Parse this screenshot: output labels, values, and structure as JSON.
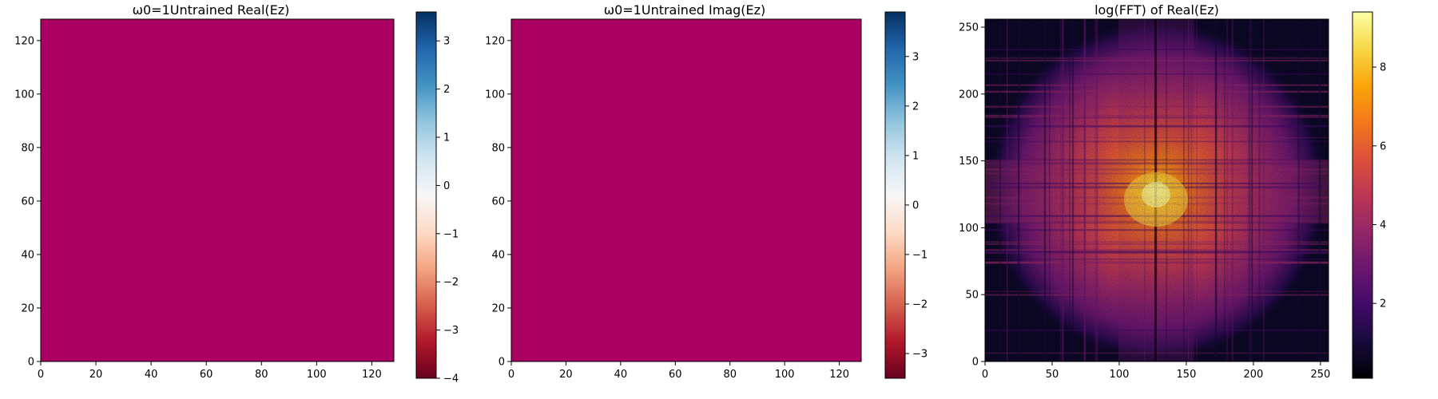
{
  "chart_data": [
    {
      "type": "heatmap",
      "title": "ω0=1Untrained Real(Ez)",
      "colormap": "RdBu",
      "xlim": [
        0,
        128
      ],
      "ylim": [
        0,
        128
      ],
      "xticks": [
        0,
        20,
        40,
        60,
        80,
        100,
        120
      ],
      "yticks": [
        0,
        20,
        40,
        60,
        80,
        100,
        120
      ],
      "colorbar": {
        "range": [
          -4,
          3.6
        ],
        "ticks": [
          3,
          2,
          1,
          0,
          -1,
          -2,
          -3,
          -4
        ],
        "tick_labels": [
          "3",
          "2",
          "1",
          "0",
          "−1",
          "−2",
          "−3",
          "−4"
        ]
      }
    },
    {
      "type": "heatmap",
      "title": "ω0=1Untrained Imag(Ez)",
      "colormap": "RdBu",
      "xlim": [
        0,
        128
      ],
      "ylim": [
        0,
        128
      ],
      "xticks": [
        0,
        20,
        40,
        60,
        80,
        100,
        120
      ],
      "yticks": [
        0,
        20,
        40,
        60,
        80,
        100,
        120
      ],
      "colorbar": {
        "range": [
          -3.5,
          3.9
        ],
        "ticks": [
          3,
          2,
          1,
          0,
          -1,
          -2,
          -3
        ],
        "tick_labels": [
          "3",
          "2",
          "1",
          "0",
          "−1",
          "−2",
          "−3"
        ]
      }
    },
    {
      "type": "heatmap",
      "title": "log(FFT) of Real(Ez)",
      "colormap": "inferno",
      "xlim": [
        0,
        256
      ],
      "ylim": [
        0,
        256
      ],
      "xticks": [
        0,
        50,
        100,
        150,
        200,
        250
      ],
      "yticks": [
        0,
        50,
        100,
        150,
        200,
        250
      ],
      "colorbar": {
        "range": [
          0.1,
          9.4
        ],
        "ticks": [
          8,
          6,
          4,
          2
        ],
        "tick_labels": [
          "8",
          "6",
          "4",
          "2"
        ]
      }
    }
  ]
}
